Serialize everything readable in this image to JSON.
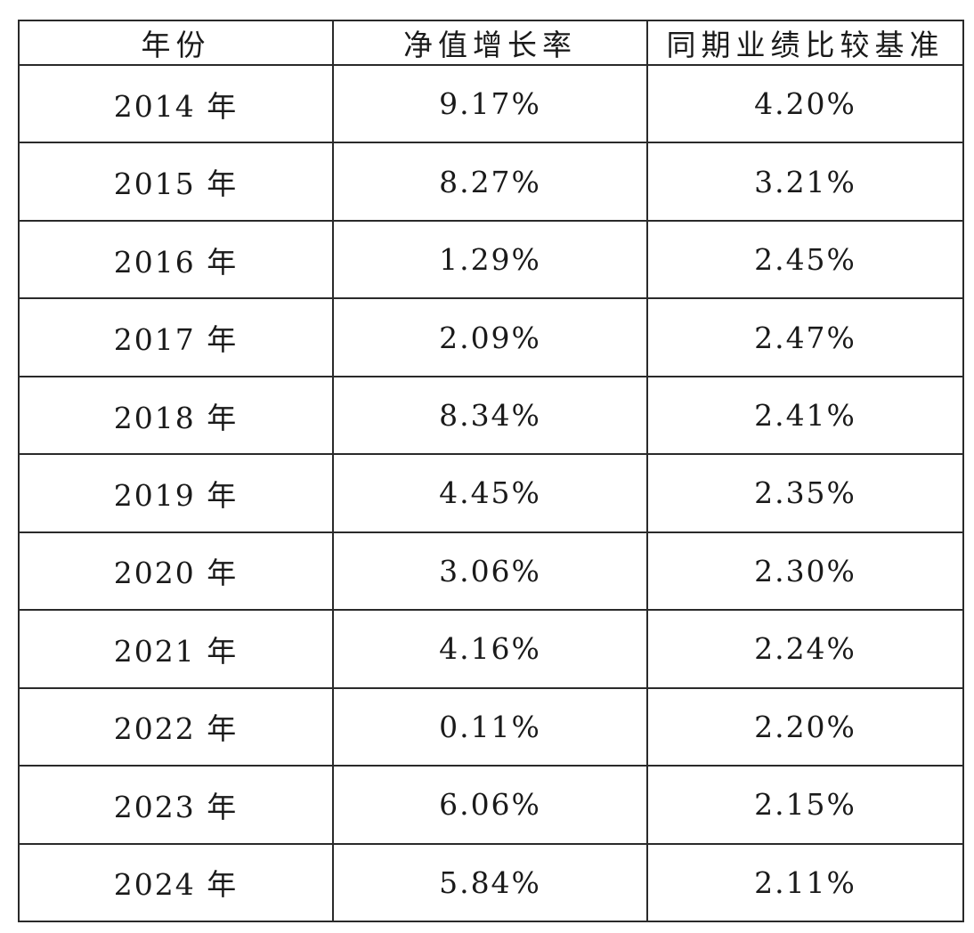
{
  "table": {
    "headers": [
      "年份",
      "净值增长率",
      "同期业绩比较基准"
    ],
    "rows": [
      [
        "2014 年",
        "9.17%",
        "4.20%"
      ],
      [
        "2015 年",
        "8.27%",
        "3.21%"
      ],
      [
        "2016 年",
        "1.29%",
        "2.45%"
      ],
      [
        "2017 年",
        "2.09%",
        "2.47%"
      ],
      [
        "2018 年",
        "8.34%",
        "2.41%"
      ],
      [
        "2019 年",
        "4.45%",
        "2.35%"
      ],
      [
        "2020 年",
        "3.06%",
        "2.30%"
      ],
      [
        "2021 年",
        "4.16%",
        "2.24%"
      ],
      [
        "2022 年",
        "0.11%",
        "2.20%"
      ],
      [
        "2023 年",
        "6.06%",
        "2.15%"
      ],
      [
        "2024 年",
        "5.84%",
        "2.11%"
      ]
    ]
  },
  "colors": {
    "border": "#2a2a2a",
    "text": "#1a1a1a",
    "background": "#ffffff"
  }
}
